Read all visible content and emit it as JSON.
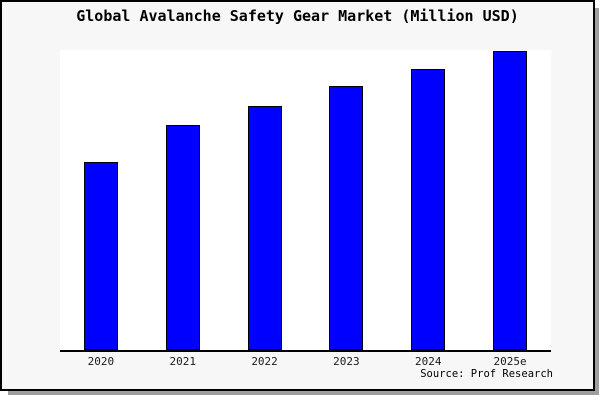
{
  "title": "Global Avalanche Safety Gear Market (Million USD)",
  "source_note": "Source: Prof Research",
  "colors": {
    "figure_background": "#f7f7f7",
    "plot_background": "#ffffff",
    "bar_fill": "#0000ff",
    "bar_edge": "#000000",
    "frame_border": "#000000",
    "frame_shadow": "#9e9e9e",
    "axis_line": "#000000"
  },
  "chart_data": {
    "type": "bar",
    "title": "Global Avalanche Safety Gear Market (Million USD)",
    "categories": [
      "2020",
      "2021",
      "2022",
      "2023",
      "2024",
      "2025e"
    ],
    "values": [
      62.9,
      75.3,
      81.6,
      88.1,
      94.0,
      100.0
    ],
    "value_scale": "relative bar heights, largest bar = 100 (no y-axis labels shown in chart)",
    "xlabel": "",
    "ylabel": "",
    "ylim": [
      0,
      100.3
    ],
    "grid": false,
    "legend": false,
    "y_axis_shown": false,
    "bar_color": "#0000ff",
    "bar_edge_color": "#000000",
    "source_note": "Source: Prof Research"
  }
}
